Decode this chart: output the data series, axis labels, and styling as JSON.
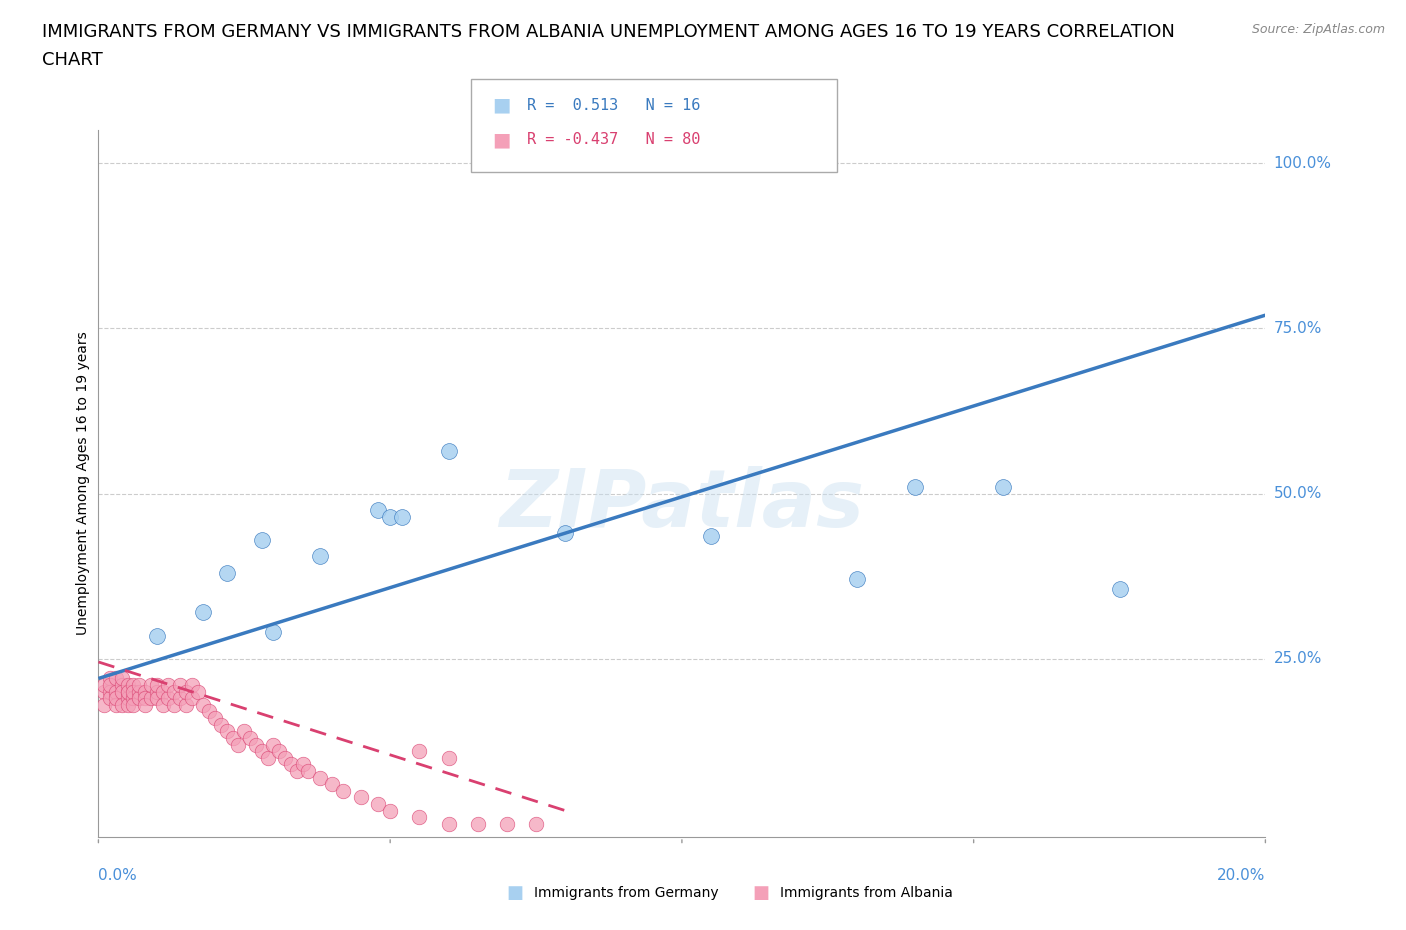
{
  "title_line1": "IMMIGRANTS FROM GERMANY VS IMMIGRANTS FROM ALBANIA UNEMPLOYMENT AMONG AGES 16 TO 19 YEARS CORRELATION",
  "title_line2": "CHART",
  "source": "Source: ZipAtlas.com",
  "xlabel_bottom_left": "0.0%",
  "xlabel_bottom_right": "20.0%",
  "ylabel": "Unemployment Among Ages 16 to 19 years",
  "ytick_labels": [
    "100.0%",
    "75.0%",
    "50.0%",
    "25.0%"
  ],
  "ytick_values": [
    1.0,
    0.75,
    0.5,
    0.25
  ],
  "xlim": [
    0.0,
    0.2
  ],
  "ylim": [
    -0.02,
    1.05
  ],
  "germany_color": "#a8d0f0",
  "albania_color": "#f4a0b8",
  "germany_trend_color": "#3a7abf",
  "albania_trend_color": "#d94070",
  "watermark": "ZIPatlas",
  "legend_r_germany": "R =  0.513",
  "legend_n_germany": "N = 16",
  "legend_r_albania": "R = -0.437",
  "legend_n_albania": "N = 80",
  "germany_scatter_x": [
    0.01,
    0.018,
    0.022,
    0.028,
    0.03,
    0.038,
    0.048,
    0.05,
    0.052,
    0.06,
    0.08,
    0.105,
    0.13,
    0.14,
    0.155,
    0.175
  ],
  "germany_scatter_y": [
    0.285,
    0.32,
    0.38,
    0.43,
    0.29,
    0.405,
    0.475,
    0.465,
    0.465,
    0.565,
    0.44,
    0.435,
    0.37,
    0.51,
    0.51,
    0.355
  ],
  "albania_scatter_x": [
    0.001,
    0.001,
    0.001,
    0.002,
    0.002,
    0.002,
    0.002,
    0.003,
    0.003,
    0.003,
    0.003,
    0.004,
    0.004,
    0.004,
    0.004,
    0.005,
    0.005,
    0.005,
    0.005,
    0.005,
    0.006,
    0.006,
    0.006,
    0.006,
    0.007,
    0.007,
    0.007,
    0.008,
    0.008,
    0.008,
    0.009,
    0.009,
    0.01,
    0.01,
    0.01,
    0.011,
    0.011,
    0.012,
    0.012,
    0.013,
    0.013,
    0.014,
    0.014,
    0.015,
    0.015,
    0.016,
    0.016,
    0.017,
    0.018,
    0.019,
    0.02,
    0.021,
    0.022,
    0.023,
    0.024,
    0.025,
    0.026,
    0.027,
    0.028,
    0.029,
    0.03,
    0.031,
    0.032,
    0.033,
    0.034,
    0.035,
    0.036,
    0.038,
    0.04,
    0.042,
    0.045,
    0.048,
    0.05,
    0.055,
    0.06,
    0.065,
    0.07,
    0.075,
    0.055,
    0.06
  ],
  "albania_scatter_y": [
    0.2,
    0.18,
    0.21,
    0.22,
    0.2,
    0.19,
    0.21,
    0.2,
    0.18,
    0.22,
    0.19,
    0.21,
    0.2,
    0.18,
    0.22,
    0.2,
    0.19,
    0.21,
    0.18,
    0.2,
    0.21,
    0.19,
    0.2,
    0.18,
    0.2,
    0.19,
    0.21,
    0.2,
    0.19,
    0.18,
    0.19,
    0.21,
    0.2,
    0.19,
    0.21,
    0.2,
    0.18,
    0.19,
    0.21,
    0.18,
    0.2,
    0.19,
    0.21,
    0.18,
    0.2,
    0.19,
    0.21,
    0.2,
    0.18,
    0.17,
    0.16,
    0.15,
    0.14,
    0.13,
    0.12,
    0.14,
    0.13,
    0.12,
    0.11,
    0.1,
    0.12,
    0.11,
    0.1,
    0.09,
    0.08,
    0.09,
    0.08,
    0.07,
    0.06,
    0.05,
    0.04,
    0.03,
    0.02,
    0.01,
    0.0,
    0.0,
    0.0,
    0.0,
    0.11,
    0.1
  ],
  "germany_trend_x": [
    0.0,
    0.2
  ],
  "germany_trend_y": [
    0.22,
    0.77
  ],
  "albania_trend_x": [
    0.0,
    0.08
  ],
  "albania_trend_y": [
    0.245,
    0.02
  ],
  "background_color": "#ffffff",
  "grid_color": "#cccccc",
  "axis_color": "#999999",
  "tick_label_color": "#4a90d9",
  "title_fontsize": 13,
  "label_fontsize": 10,
  "tick_fontsize": 11
}
